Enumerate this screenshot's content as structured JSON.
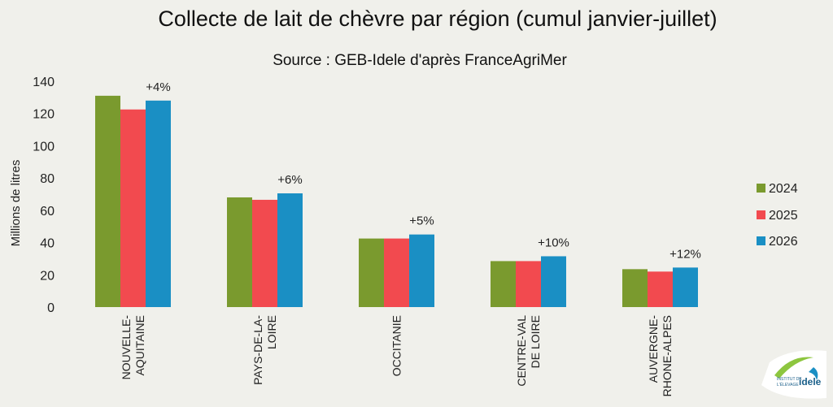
{
  "chart_data": {
    "type": "bar",
    "title": "Collecte de lait de chèvre par région (cumul janvier-juillet)",
    "subtitle": "Source : GEB-Idele d'après FranceAgriMer",
    "ylabel": "Millions de litres",
    "xlabel": "",
    "ylim": [
      0,
      140
    ],
    "yticks": [
      0,
      20,
      40,
      60,
      80,
      100,
      120,
      140
    ],
    "grid": false,
    "legend_position": "right",
    "categories": [
      [
        "NOUVELLE-",
        "AQUITAINE"
      ],
      [
        "PAYS-DE-LA-",
        "LOIRE"
      ],
      [
        "OCCITANIE"
      ],
      [
        "CENTRE-VAL",
        "DE LOIRE"
      ],
      [
        "AUVERGNE-",
        "RHONE-ALPES"
      ]
    ],
    "series": [
      {
        "name": "2024",
        "color": "#7a9a2e",
        "values": [
          131,
          68,
          42.5,
          28.5,
          23.5
        ]
      },
      {
        "name": "2025",
        "color": "#f24a4f",
        "values": [
          122.5,
          66.5,
          42.5,
          28.5,
          22
        ]
      },
      {
        "name": "2026",
        "color": "#1a8fc4",
        "values": [
          128,
          70.5,
          45,
          31.5,
          24.5
        ]
      }
    ],
    "annotations": [
      "+4%",
      "+6%",
      "+5%",
      "+10%",
      "+12%"
    ]
  },
  "logo": {
    "line1": "INSTITUT DE",
    "line2": "L'ÉLEVAGE",
    "brand": "idele",
    "colors": [
      "#8dc63f",
      "#1a8fc4",
      "#e2231a"
    ]
  }
}
